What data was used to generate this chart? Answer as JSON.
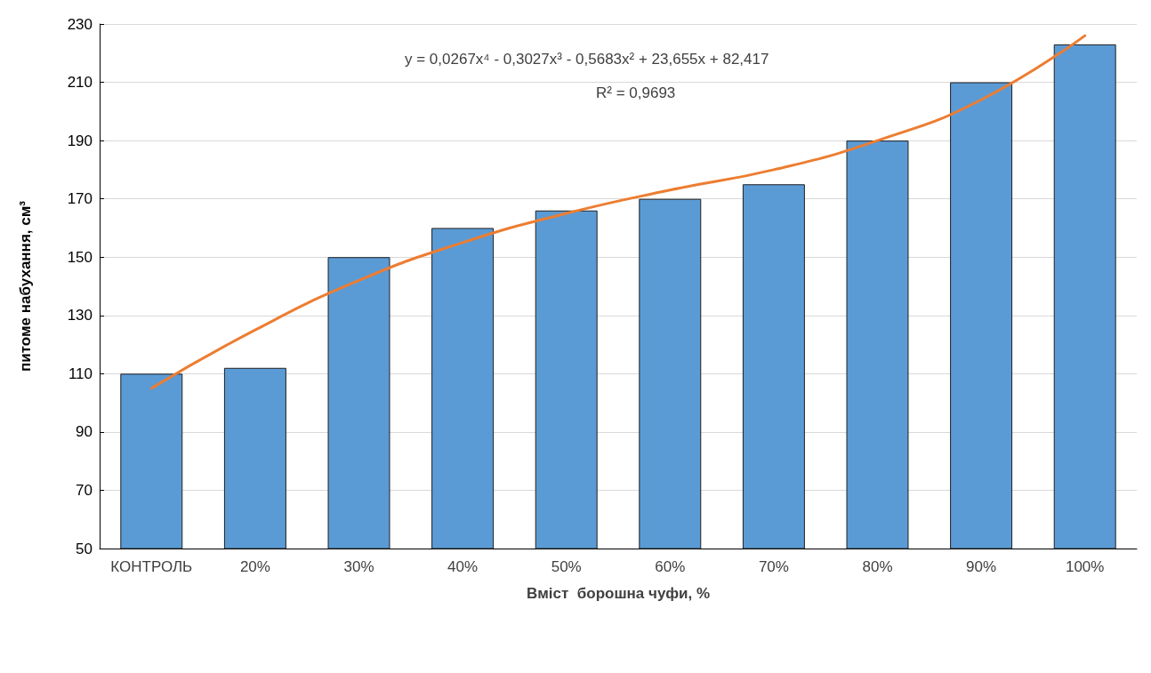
{
  "chart_data": {
    "type": "bar",
    "xlabel": "Вміст  борошна чуфи, %",
    "ylabel": "питоме набухання, см³",
    "categories": [
      "КОНТРОЛЬ",
      "20%",
      "30%",
      "40%",
      "50%",
      "60%",
      "70%",
      "80%",
      "90%",
      "100%"
    ],
    "series": [
      {
        "color": "#5b9bd5",
        "values": [
          110,
          112,
          150,
          160,
          166,
          170,
          175,
          190,
          210,
          223
        ]
      },
      {
        "type": "line",
        "color": "#ed7d31",
        "x": [
          "КОНТРОЛЬ",
          "20%",
          "30%",
          "40%",
          "50%",
          "60%",
          "70%",
          "80%",
          "90%",
          "100%"
        ],
        "values": [
          105,
          125,
          142,
          155,
          165,
          173,
          180,
          190,
          204,
          226
        ]
      }
    ],
    "ylim": [
      50,
      230
    ],
    "yticks": [
      50,
      70,
      90,
      110,
      130,
      150,
      170,
      190,
      210,
      230
    ],
    "grid": "y",
    "marker": "none",
    "line_style": "solid",
    "annotations": [
      "y = 0,0267x⁴ - 0,3027x³ - 0,5683x² + 23,655x + 82,417",
      "R² = 0,9693"
    ]
  }
}
